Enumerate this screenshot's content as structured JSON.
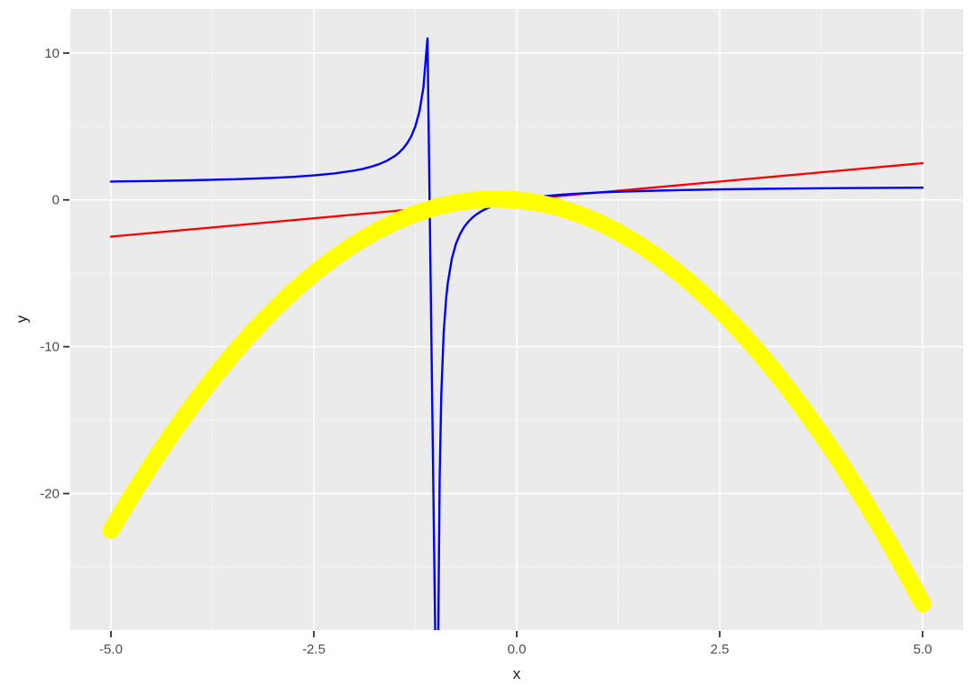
{
  "chart_data": {
    "type": "line",
    "title": "",
    "xlabel": "x",
    "ylabel": "y",
    "xlim": [
      -5.5,
      5.5
    ],
    "ylim": [
      -29.3,
      13.0
    ],
    "grid": true,
    "legend": "none",
    "x_axis": {
      "tick_values": [
        -5,
        -2.5,
        0,
        2.5,
        5
      ],
      "tick_labels": [
        "-5.0",
        "-2.5",
        "0.0",
        "2.5",
        "5.0"
      ],
      "minor_values": [
        -3.75,
        -1.25,
        1.25,
        3.75
      ]
    },
    "y_axis": {
      "tick_values": [
        10,
        0,
        -10,
        -20
      ],
      "tick_labels": [
        "10",
        "0",
        "-10",
        "-20"
      ],
      "minor_values": [
        5,
        -5,
        -15,
        -25
      ]
    },
    "series": [
      {
        "id": "red-line",
        "formula": "y = x/2",
        "color": "#FF0000",
        "width": 2.3,
        "segments": [
          [
            [
              -5,
              -2.5
            ],
            [
              5,
              2.5
            ]
          ]
        ]
      },
      {
        "id": "blue-curve",
        "formula": "y = x/(x+1)",
        "color": "#0000FF",
        "width": 2.4,
        "segments": [
          [
            [
              -5,
              1.25
            ],
            [
              -4.5,
              1.2857
            ],
            [
              -4,
              1.3333
            ],
            [
              -3.5,
              1.4
            ],
            [
              -3,
              1.5
            ],
            [
              -2.75,
              1.5714
            ],
            [
              -2.5,
              1.6667
            ],
            [
              -2.25,
              1.8
            ],
            [
              -2,
              2
            ],
            [
              -1.9,
              2.1111
            ],
            [
              -1.8,
              2.25
            ],
            [
              -1.7,
              2.4286
            ],
            [
              -1.6,
              2.6667
            ],
            [
              -1.5,
              3
            ],
            [
              -1.45,
              3.2222
            ],
            [
              -1.4,
              3.5
            ],
            [
              -1.35,
              3.8571
            ],
            [
              -1.3,
              4.3333
            ],
            [
              -1.25,
              5
            ],
            [
              -1.2,
              6
            ],
            [
              -1.15,
              7.6667
            ],
            [
              -1.1,
              11
            ],
            [
              -1.005,
              -29.6
            ]
          ],
          [
            [
              -0.967,
              -29.3
            ],
            [
              -0.95,
              -19
            ],
            [
              -0.93,
              -13.2857
            ],
            [
              -0.9,
              -9
            ],
            [
              -0.87,
              -6.6923
            ],
            [
              -0.85,
              -5.6667
            ],
            [
              -0.8,
              -4
            ],
            [
              -0.75,
              -3
            ],
            [
              -0.7,
              -2.3333
            ],
            [
              -0.65,
              -1.8571
            ],
            [
              -0.6,
              -1.5
            ],
            [
              -0.55,
              -1.2222
            ],
            [
              -0.5,
              -1
            ],
            [
              -0.45,
              -0.8182
            ],
            [
              -0.4,
              -0.6667
            ],
            [
              -0.35,
              -0.5385
            ],
            [
              -0.3,
              -0.4286
            ],
            [
              -0.25,
              -0.3333
            ],
            [
              -0.2,
              -0.25
            ],
            [
              -0.15,
              -0.1765
            ],
            [
              -0.1,
              -0.1111
            ],
            [
              -0.05,
              -0.0526
            ],
            [
              0,
              0
            ],
            [
              0.1,
              0.0909
            ],
            [
              0.25,
              0.2
            ],
            [
              0.5,
              0.3333
            ],
            [
              0.75,
              0.4286
            ],
            [
              1,
              0.5
            ],
            [
              1.25,
              0.5556
            ],
            [
              1.5,
              0.6
            ],
            [
              2,
              0.6667
            ],
            [
              2.5,
              0.7143
            ],
            [
              3,
              0.75
            ],
            [
              3.5,
              0.7778
            ],
            [
              4,
              0.8
            ],
            [
              4.5,
              0.8182
            ],
            [
              5,
              0.8333
            ]
          ]
        ]
      },
      {
        "id": "yellow-parabola",
        "formula": "y = -x^2 - x/2",
        "color": "#FFFF00",
        "width": 19,
        "segments": [
          [
            [
              -5,
              -22.5
            ],
            [
              -4.75,
              -20.1875
            ],
            [
              -4.5,
              -18
            ],
            [
              -4.25,
              -15.9375
            ],
            [
              -4,
              -14
            ],
            [
              -3.75,
              -12.1875
            ],
            [
              -3.5,
              -10.5
            ],
            [
              -3.25,
              -8.9375
            ],
            [
              -3,
              -7.5
            ],
            [
              -2.75,
              -6.1875
            ],
            [
              -2.5,
              -5
            ],
            [
              -2.25,
              -3.9375
            ],
            [
              -2,
              -3
            ],
            [
              -1.75,
              -2.1875
            ],
            [
              -1.5,
              -1.5
            ],
            [
              -1.25,
              -0.9375
            ],
            [
              -1,
              -0.5
            ],
            [
              -0.75,
              -0.1875
            ],
            [
              -0.5,
              0
            ],
            [
              -0.25,
              0.0625
            ],
            [
              0,
              0
            ],
            [
              0.25,
              -0.1875
            ],
            [
              0.5,
              -0.5
            ],
            [
              0.75,
              -0.9375
            ],
            [
              1,
              -1.5
            ],
            [
              1.25,
              -2.1875
            ],
            [
              1.5,
              -3
            ],
            [
              1.75,
              -3.9375
            ],
            [
              2,
              -5
            ],
            [
              2.25,
              -6.1875
            ],
            [
              2.5,
              -7.5
            ],
            [
              2.75,
              -8.9375
            ],
            [
              3,
              -10.5
            ],
            [
              3.25,
              -12.1875
            ],
            [
              3.5,
              -14
            ],
            [
              3.75,
              -15.9375
            ],
            [
              4,
              -18
            ],
            [
              4.25,
              -20.1875
            ],
            [
              4.5,
              -22.5
            ],
            [
              4.75,
              -24.9375
            ],
            [
              5,
              -27.5
            ]
          ]
        ]
      }
    ]
  },
  "style": {
    "background": "#FFFFFF",
    "panel_bg": "#EBEBEB",
    "grid_color": "#FFFFFF",
    "tick_mark_color": "#333333",
    "tick_label_color": "#4D4D4D",
    "axis_title_color": "#1A1A1A"
  }
}
